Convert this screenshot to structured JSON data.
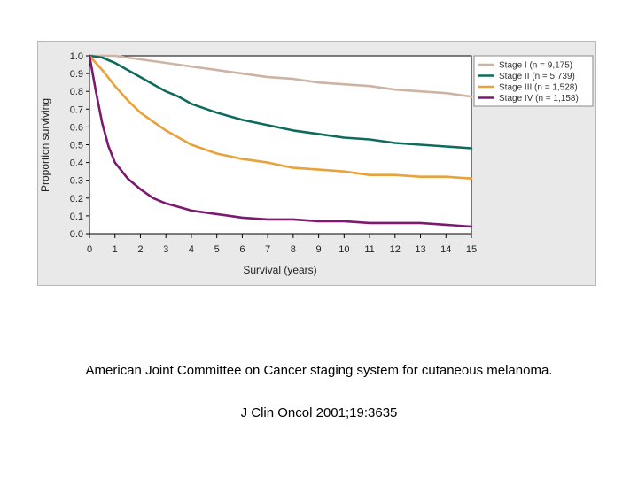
{
  "caption": {
    "title": "American Joint Committee on Cancer staging system for cutaneous melanoma.",
    "citation": "J Clin Oncol 2001;19:3635"
  },
  "chart_data": {
    "type": "line",
    "xlabel": "Survival (years)",
    "ylabel": "Proportion surviving",
    "xlim": [
      0,
      15
    ],
    "ylim": [
      0,
      1
    ],
    "x_ticks": [
      0,
      1,
      2,
      3,
      4,
      5,
      6,
      7,
      8,
      9,
      10,
      11,
      12,
      13,
      14,
      15
    ],
    "y_ticks": [
      0.0,
      0.1,
      0.2,
      0.3,
      0.4,
      0.5,
      0.6,
      0.7,
      0.8,
      0.9,
      1.0
    ],
    "x_tick_labels": [
      "0",
      "1",
      "2",
      "3",
      "4",
      "5",
      "6",
      "7",
      "8",
      "9",
      "10",
      "11",
      "12",
      "13",
      "14",
      "15"
    ],
    "y_tick_labels": [
      "0.0",
      "0.1",
      "0.2",
      "0.3",
      "0.4",
      "0.5",
      "0.6",
      "0.7",
      "0.8",
      "0.9",
      "1.0"
    ],
    "grid": false,
    "legend_position": "top-right",
    "series": [
      {
        "name": "Stage I (n = 9,175)",
        "color": "#cdb3a3",
        "x": [
          0,
          0.5,
          1,
          1.5,
          2,
          2.5,
          3,
          4,
          5,
          6,
          7,
          8,
          9,
          10,
          11,
          12,
          13,
          14,
          15
        ],
        "y": [
          1.0,
          1.0,
          1.0,
          0.99,
          0.98,
          0.97,
          0.96,
          0.94,
          0.92,
          0.9,
          0.88,
          0.87,
          0.85,
          0.84,
          0.83,
          0.81,
          0.8,
          0.79,
          0.77
        ]
      },
      {
        "name": "Stage II (n = 5,739)",
        "color": "#0f6a5e",
        "x": [
          0,
          0.5,
          1,
          1.5,
          2,
          2.5,
          3,
          3.5,
          4,
          5,
          6,
          7,
          8,
          9,
          10,
          11,
          12,
          13,
          14,
          15
        ],
        "y": [
          1.0,
          0.99,
          0.96,
          0.92,
          0.88,
          0.84,
          0.8,
          0.77,
          0.73,
          0.68,
          0.64,
          0.61,
          0.58,
          0.56,
          0.54,
          0.53,
          0.51,
          0.5,
          0.49,
          0.48
        ]
      },
      {
        "name": "Stage III (n = 1,528)",
        "color": "#e8a23a",
        "x": [
          0,
          0.5,
          1,
          1.5,
          2,
          2.5,
          3,
          3.5,
          4,
          5,
          6,
          7,
          8,
          9,
          10,
          11,
          12,
          13,
          14,
          15
        ],
        "y": [
          1.0,
          0.92,
          0.83,
          0.75,
          0.68,
          0.63,
          0.58,
          0.54,
          0.5,
          0.45,
          0.42,
          0.4,
          0.37,
          0.36,
          0.35,
          0.33,
          0.33,
          0.32,
          0.32,
          0.31
        ]
      },
      {
        "name": "Stage IV (n = 1,158)",
        "color": "#7b1a6e",
        "x": [
          0,
          0.25,
          0.5,
          0.75,
          1,
          1.5,
          2,
          2.5,
          3,
          3.5,
          4,
          5,
          6,
          7,
          8,
          9,
          10,
          11,
          12,
          13,
          14,
          15
        ],
        "y": [
          1.0,
          0.8,
          0.62,
          0.49,
          0.4,
          0.31,
          0.25,
          0.2,
          0.17,
          0.15,
          0.13,
          0.11,
          0.09,
          0.08,
          0.08,
          0.07,
          0.07,
          0.06,
          0.06,
          0.06,
          0.05,
          0.04
        ]
      }
    ]
  }
}
